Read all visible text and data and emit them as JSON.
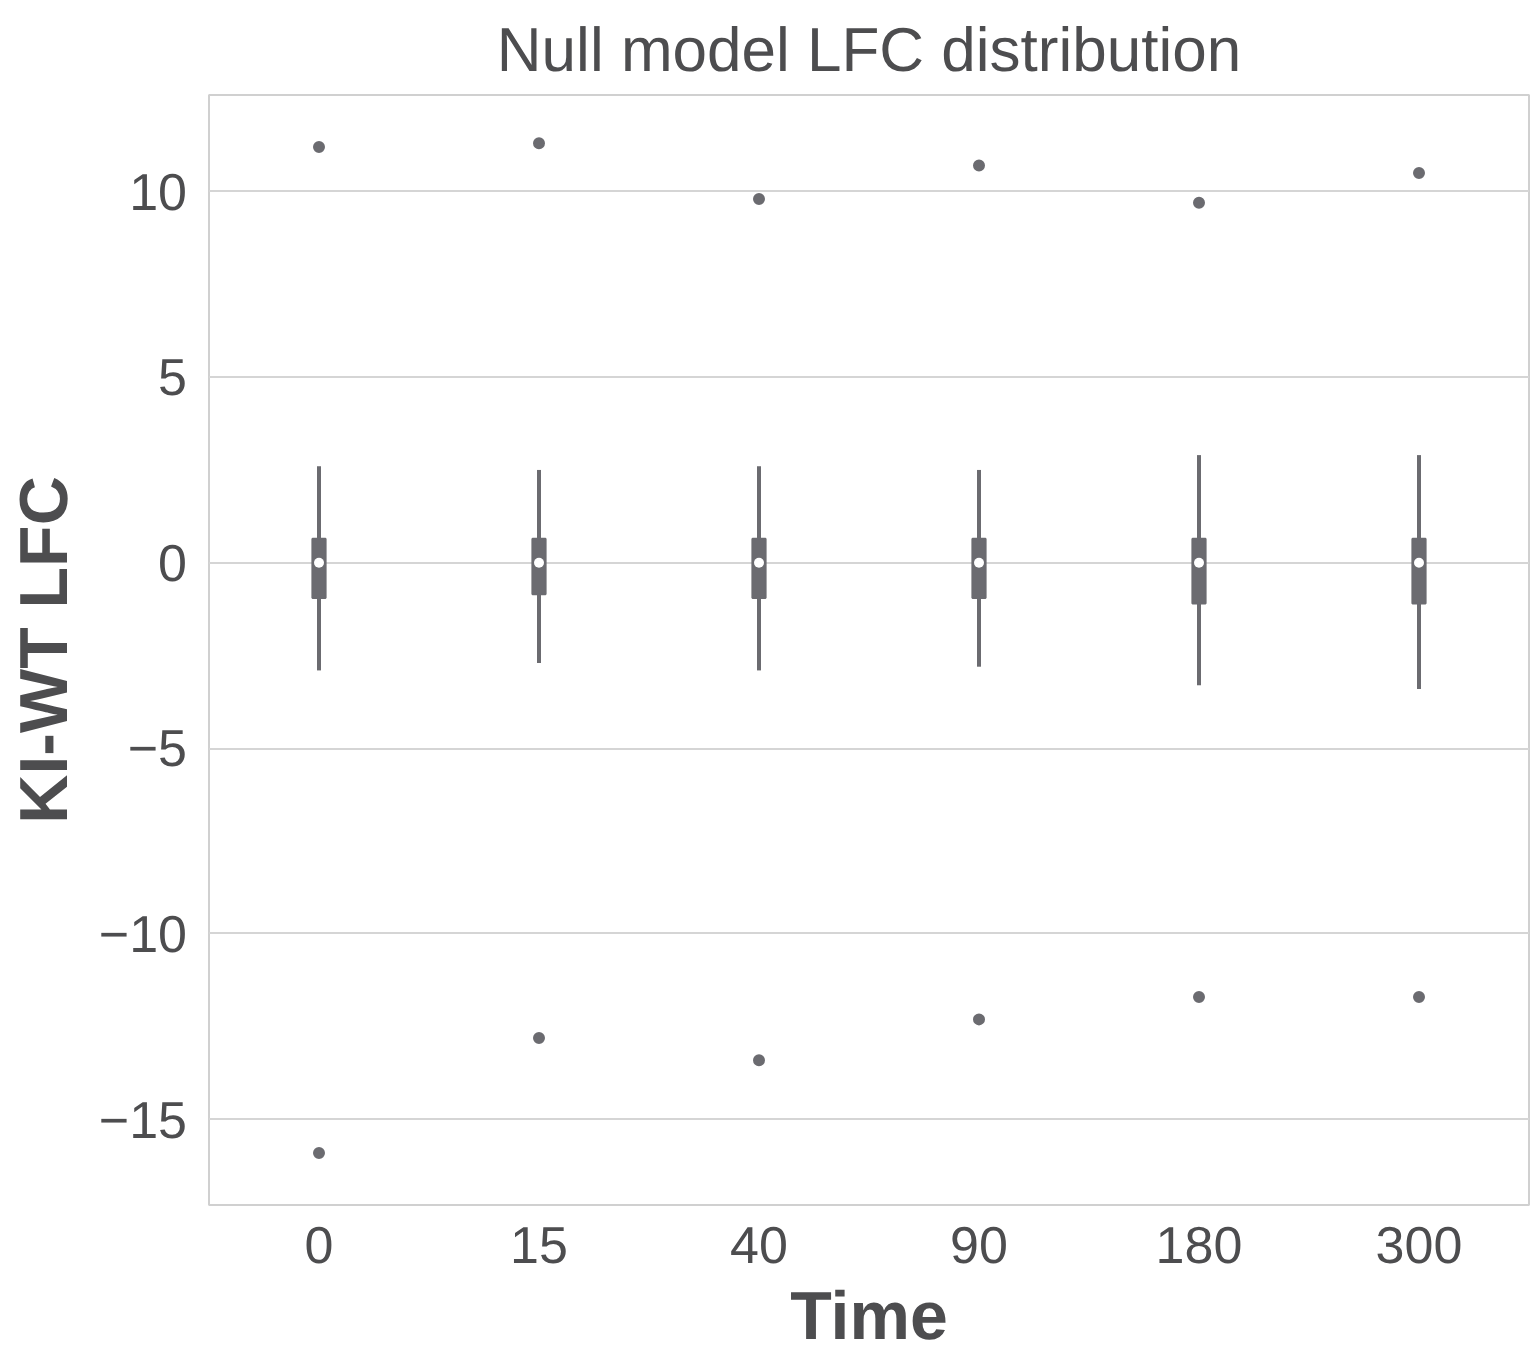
{
  "chart_data": {
    "type": "box",
    "title": "Null model LFC distribution",
    "xlabel": "Time",
    "ylabel": "KI-WT LFC",
    "categories": [
      "0",
      "15",
      "40",
      "90",
      "180",
      "300"
    ],
    "ylim": [
      -17.3,
      12.6
    ],
    "yticks": [
      -15,
      -10,
      -5,
      0,
      5,
      10
    ],
    "grid": "y",
    "series": [
      {
        "color": "#6b6b70",
        "boxes": [
          {
            "low": -2.9,
            "q1": -0.95,
            "median": 0,
            "q3": 0.65,
            "high": 2.6,
            "outliers": [
              -15.9,
              11.2
            ]
          },
          {
            "low": -2.7,
            "q1": -0.85,
            "median": 0,
            "q3": 0.65,
            "high": 2.5,
            "outliers": [
              -12.8,
              11.3
            ]
          },
          {
            "low": -2.9,
            "q1": -0.95,
            "median": 0,
            "q3": 0.65,
            "high": 2.6,
            "outliers": [
              -13.4,
              9.8
            ]
          },
          {
            "low": -2.8,
            "q1": -0.95,
            "median": 0,
            "q3": 0.65,
            "high": 2.5,
            "outliers": [
              -12.3,
              10.7
            ]
          },
          {
            "low": -3.3,
            "q1": -1.1,
            "median": 0,
            "q3": 0.65,
            "high": 2.9,
            "outliers": [
              -11.7,
              9.7
            ]
          },
          {
            "low": -3.4,
            "q1": -1.1,
            "median": 0,
            "q3": 0.65,
            "high": 2.9,
            "outliers": [
              -11.7,
              10.5
            ]
          }
        ]
      }
    ]
  }
}
